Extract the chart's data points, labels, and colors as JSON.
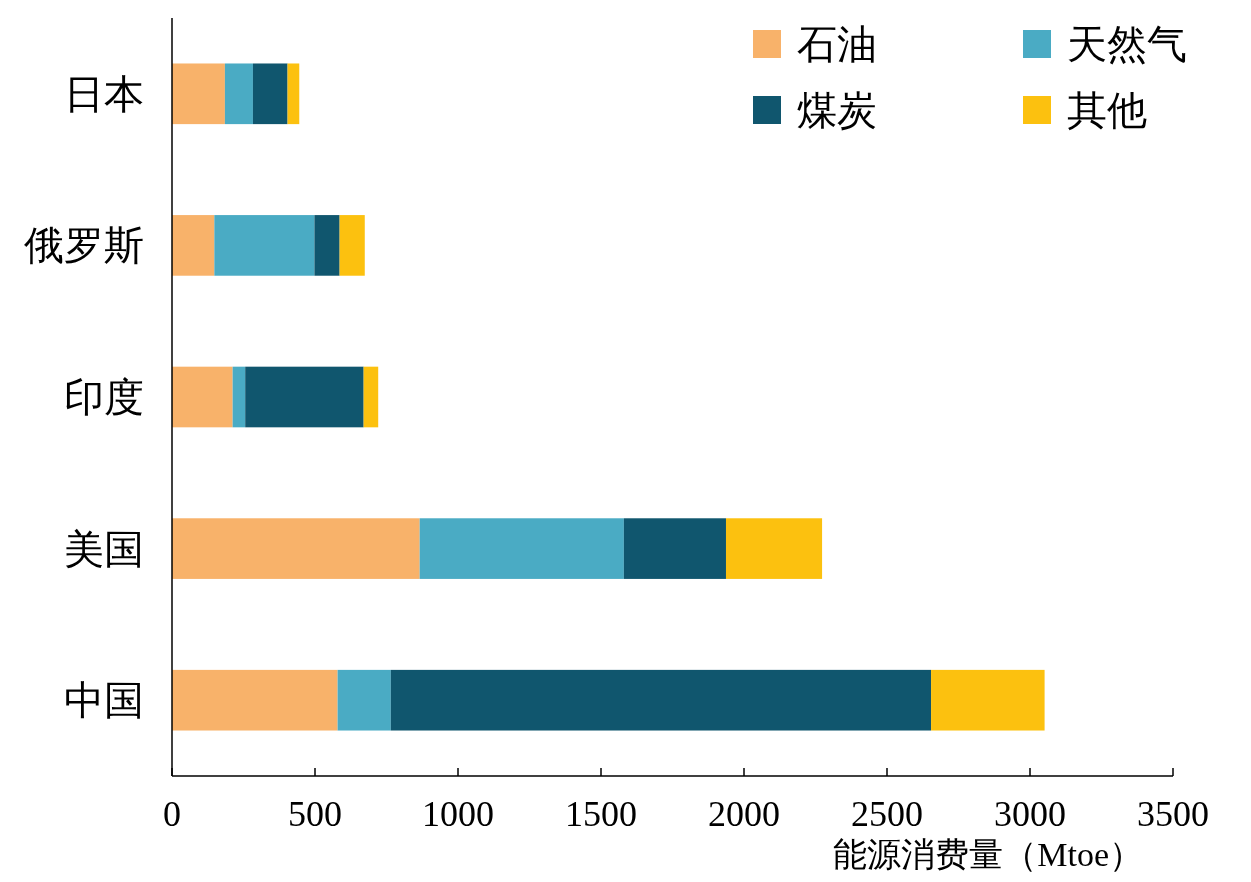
{
  "chart_data": {
    "type": "bar",
    "orientation": "horizontal",
    "stacked": true,
    "xlabel": "能源消费量（Mtoe）",
    "categories": [
      "日本",
      "俄罗斯",
      "印度",
      "美国",
      "中国"
    ],
    "series": [
      {
        "name": "石油",
        "color": "#f8b26a",
        "values": [
          185,
          148,
          212,
          866,
          579
        ]
      },
      {
        "name": "天然气",
        "color": "#4aabc4",
        "values": [
          98,
          350,
          44,
          714,
          186
        ]
      },
      {
        "name": "煤炭",
        "color": "#10566e",
        "values": [
          121,
          88,
          414,
          357,
          1889
        ]
      },
      {
        "name": "其他",
        "color": "#fcc10f",
        "values": [
          41,
          88,
          51,
          336,
          397
        ]
      }
    ],
    "xlim": [
      0,
      3500
    ],
    "xticks": [
      0,
      500,
      1000,
      1500,
      2000,
      2500,
      3000,
      3500
    ],
    "grid": false,
    "legend": "top right"
  }
}
